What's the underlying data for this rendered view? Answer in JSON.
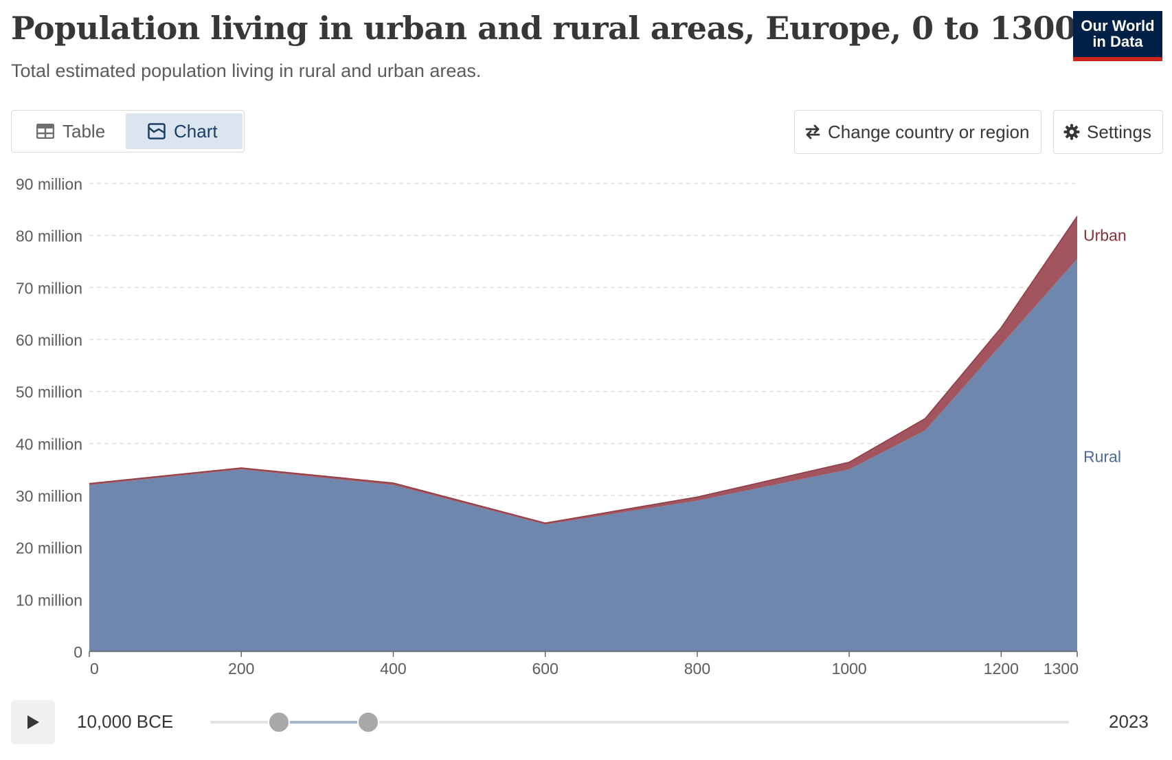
{
  "header": {
    "title": "Population living in urban and rural areas, Europe, 0 to 1300",
    "subtitle": "Total estimated population living in rural and urban areas.",
    "logo_line1": "Our World",
    "logo_line2": "in Data"
  },
  "controls": {
    "tab_table": "Table",
    "tab_chart": "Chart",
    "change_region": "Change country or region",
    "settings": "Settings"
  },
  "timeline": {
    "start_label": "10,000 BCE",
    "end_label": "2023"
  },
  "colors": {
    "rural": "#6f86ad",
    "urban": "#a2555f",
    "rural_label": "#4c6a9c",
    "urban_label": "#883039"
  },
  "chart_data": {
    "type": "area",
    "stacked": true,
    "title": "Population living in urban and rural areas, Europe, 0 to 1300",
    "subtitle": "Total estimated population living in rural and urban areas.",
    "xlabel": "",
    "ylabel": "",
    "x": [
      0,
      200,
      400,
      600,
      800,
      1000,
      1100,
      1200,
      1300
    ],
    "x_ticks": [
      0,
      200,
      400,
      600,
      800,
      1000,
      1200,
      1300
    ],
    "ylim": [
      0,
      90000000
    ],
    "y_ticks": [
      {
        "value": 0,
        "label": "0"
      },
      {
        "value": 10000000,
        "label": "10 million"
      },
      {
        "value": 20000000,
        "label": "20 million"
      },
      {
        "value": 30000000,
        "label": "30 million"
      },
      {
        "value": 40000000,
        "label": "40 million"
      },
      {
        "value": 50000000,
        "label": "50 million"
      },
      {
        "value": 60000000,
        "label": "60 million"
      },
      {
        "value": 70000000,
        "label": "70 million"
      },
      {
        "value": 80000000,
        "label": "80 million"
      },
      {
        "value": 90000000,
        "label": "90 million"
      }
    ],
    "grid": true,
    "series": [
      {
        "name": "Rural",
        "values": [
          32000000,
          35000000,
          32000000,
          24400000,
          29000000,
          35000000,
          42500000,
          59000000,
          75500000
        ]
      },
      {
        "name": "Urban",
        "values": [
          300000,
          300000,
          400000,
          300000,
          700000,
          1400000,
          2300000,
          3300000,
          8200000
        ]
      }
    ]
  }
}
